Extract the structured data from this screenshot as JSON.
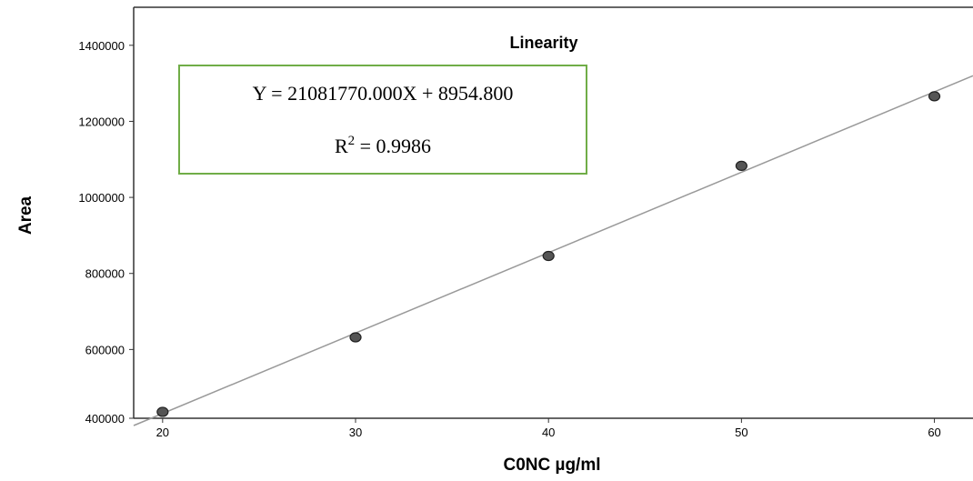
{
  "chart_data": {
    "type": "scatter",
    "title": "Linearity",
    "xlabel": "C0NC µg/ml",
    "ylabel": "Area",
    "xlim": [
      18.5,
      62
    ],
    "ylim": [
      400000,
      1500000
    ],
    "x_ticks": [
      20,
      30,
      40,
      50,
      60
    ],
    "y_ticks": [
      400000,
      600000,
      800000,
      1000000,
      1200000,
      1400000
    ],
    "x_tick_labels": [
      "20",
      "30",
      "40",
      "50",
      "60"
    ],
    "y_tick_labels": [
      "400000",
      "600000",
      "800000",
      "1000000",
      "1200000",
      "1400000"
    ],
    "series": [
      {
        "x": [
          20,
          30,
          40,
          50,
          60
        ],
        "y": [
          436000,
          632000,
          846000,
          1083000,
          1266000
        ]
      }
    ],
    "fit_line": {
      "x_start": 18.5,
      "y_start": 400000,
      "x_end": 62,
      "y_end": 1320000
    },
    "annotation": {
      "equation": "Y = 21081770.000X + 8954.800",
      "r2_prefix": "R",
      "r2_sup": "2",
      "r2_value": " = 0.9986"
    },
    "grid": false,
    "legend": "none",
    "colors": {
      "point_fill": "#555555",
      "point_stroke": "#222222",
      "fit_line": "#999999",
      "annotation_border": "#70ad47",
      "axis": "#333333"
    }
  }
}
